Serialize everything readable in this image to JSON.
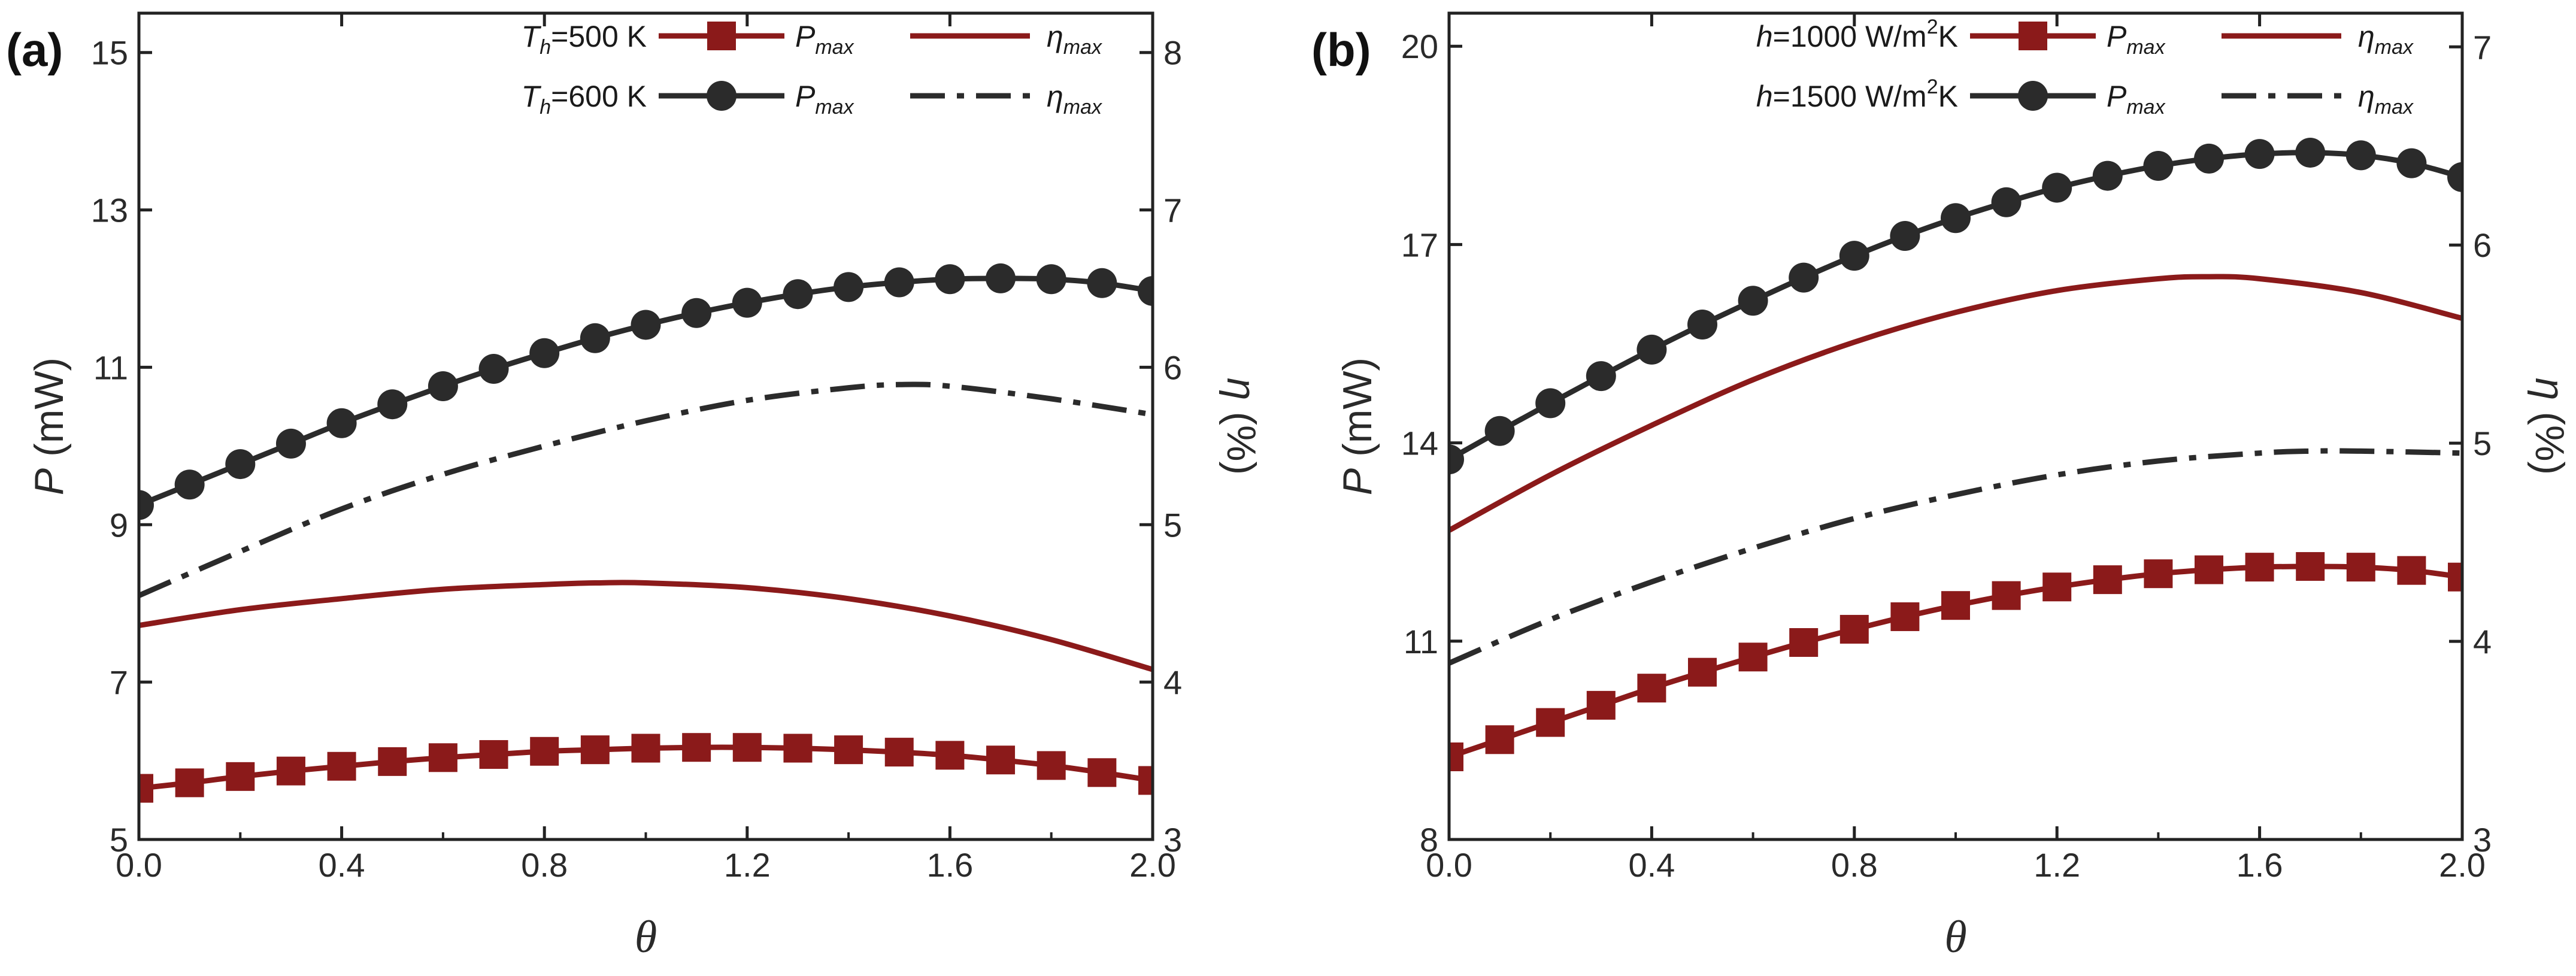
{
  "chart_data": [
    {
      "panel_label": "(a)",
      "type": "line",
      "xlabel": "θ",
      "ylabel_left_var": "P",
      "ylabel_left_unit": " (mW)",
      "ylabel_right_var": "η",
      "ylabel_right_unit": " (%)",
      "xlim": [
        0,
        2.0
      ],
      "ylim_left": [
        5,
        15.5
      ],
      "ylim_right": [
        3,
        8.25
      ],
      "xticks": [
        "0.0",
        "0.4",
        "0.8",
        "1.2",
        "1.6",
        "2.0"
      ],
      "yticks_left": [
        "5",
        "7",
        "9",
        "11",
        "13",
        "15"
      ],
      "yticks_right": [
        "3",
        "4",
        "5",
        "6",
        "7",
        "8"
      ],
      "legend": {
        "position": "top-right",
        "rows": [
          {
            "label": "T",
            "sub": "h",
            "suffix": "=500 K",
            "pmax": "P",
            "pmax_sub": "max",
            "eta": "η",
            "eta_sub": "max"
          },
          {
            "label": "T",
            "sub": "h",
            "suffix": "=600 K",
            "pmax": "P",
            "pmax_sub": "max",
            "eta": "η",
            "eta_sub": "max"
          }
        ]
      },
      "series": [
        {
          "name": "Th=500 K Pmax",
          "axis": "left",
          "style": "line-square",
          "color": "#8b1a1a",
          "x": [
            0,
            0.1,
            0.2,
            0.3,
            0.4,
            0.5,
            0.6,
            0.7,
            0.8,
            0.9,
            1.0,
            1.1,
            1.2,
            1.3,
            1.4,
            1.5,
            1.6,
            1.7,
            1.8,
            1.9,
            2.0
          ],
          "y": [
            5.65,
            5.72,
            5.8,
            5.87,
            5.93,
            5.99,
            6.04,
            6.08,
            6.12,
            6.14,
            6.16,
            6.17,
            6.17,
            6.16,
            6.14,
            6.11,
            6.07,
            6.01,
            5.94,
            5.85,
            5.75
          ]
        },
        {
          "name": "Th=600 K Pmax",
          "axis": "left",
          "style": "line-circle",
          "color": "#2b2b2b",
          "x": [
            0,
            0.1,
            0.2,
            0.3,
            0.4,
            0.5,
            0.6,
            0.7,
            0.8,
            0.9,
            1.0,
            1.1,
            1.2,
            1.3,
            1.4,
            1.5,
            1.6,
            1.7,
            1.8,
            1.9,
            2.0
          ],
          "y": [
            9.25,
            9.51,
            9.77,
            10.03,
            10.29,
            10.53,
            10.76,
            10.98,
            11.18,
            11.37,
            11.54,
            11.69,
            11.82,
            11.93,
            12.02,
            12.08,
            12.12,
            12.13,
            12.12,
            12.07,
            11.97
          ]
        },
        {
          "name": "Th=500 K eta_max",
          "axis": "right",
          "style": "solid",
          "color": "#8b1a1a",
          "x": [
            0,
            0.2,
            0.4,
            0.6,
            0.8,
            0.9,
            1.0,
            1.2,
            1.4,
            1.6,
            1.8,
            2.0
          ],
          "y": [
            4.36,
            4.46,
            4.53,
            4.59,
            4.62,
            4.63,
            4.63,
            4.6,
            4.53,
            4.42,
            4.27,
            4.08
          ]
        },
        {
          "name": "Th=600 K eta_max",
          "axis": "right",
          "style": "dashdot",
          "color": "#2b2b2b",
          "x": [
            0,
            0.2,
            0.4,
            0.6,
            0.8,
            1.0,
            1.2,
            1.4,
            1.5,
            1.6,
            1.8,
            2.0
          ],
          "y": [
            4.55,
            4.83,
            5.1,
            5.32,
            5.5,
            5.66,
            5.79,
            5.87,
            5.89,
            5.88,
            5.8,
            5.7
          ]
        }
      ]
    },
    {
      "panel_label": "(b)",
      "type": "line",
      "xlabel": "θ",
      "ylabel_left_var": "P",
      "ylabel_left_unit": " (mW)",
      "ylabel_right_var": "η",
      "ylabel_right_unit": " (%)",
      "xlim": [
        0,
        2.0
      ],
      "ylim_left": [
        8,
        20.5
      ],
      "ylim_right": [
        3,
        7.17
      ],
      "xticks": [
        "0.0",
        "0.4",
        "0.8",
        "1.2",
        "1.6",
        "2.0"
      ],
      "yticks_left": [
        "8",
        "11",
        "14",
        "17",
        "20"
      ],
      "yticks_right": [
        "3",
        "4",
        "5",
        "6",
        "7"
      ],
      "legend": {
        "position": "top-right",
        "rows": [
          {
            "label": "h",
            "unit_pre": "=1000 W/m",
            "sup": "2",
            "unit_post": "K",
            "pmax": "P",
            "pmax_sub": "max",
            "eta": "η",
            "eta_sub": "max"
          },
          {
            "label": "h",
            "unit_pre": "=1500 W/m",
            "sup": "2",
            "unit_post": "K",
            "pmax": "P",
            "pmax_sub": "max",
            "eta": "η",
            "eta_sub": "max"
          }
        ]
      },
      "series": [
        {
          "name": "h=1000 Pmax",
          "axis": "left",
          "style": "line-square",
          "color": "#8b1a1a",
          "x": [
            0,
            0.1,
            0.2,
            0.3,
            0.4,
            0.5,
            0.6,
            0.7,
            0.8,
            0.9,
            1.0,
            1.1,
            1.2,
            1.3,
            1.4,
            1.5,
            1.6,
            1.7,
            1.8,
            1.9,
            2.0
          ],
          "y": [
            9.25,
            9.51,
            9.77,
            10.03,
            10.29,
            10.53,
            10.76,
            10.98,
            11.18,
            11.37,
            11.54,
            11.69,
            11.82,
            11.93,
            12.02,
            12.08,
            12.12,
            12.13,
            12.12,
            12.07,
            11.97
          ]
        },
        {
          "name": "h=1500 Pmax",
          "axis": "left",
          "style": "line-circle",
          "color": "#2b2b2b",
          "x": [
            0,
            0.1,
            0.2,
            0.3,
            0.4,
            0.5,
            0.6,
            0.7,
            0.8,
            0.9,
            1.0,
            1.1,
            1.2,
            1.3,
            1.4,
            1.5,
            1.6,
            1.7,
            1.8,
            1.9,
            2.0
          ],
          "y": [
            13.75,
            14.18,
            14.6,
            15.01,
            15.41,
            15.79,
            16.15,
            16.5,
            16.83,
            17.13,
            17.4,
            17.64,
            17.86,
            18.04,
            18.19,
            18.3,
            18.37,
            18.39,
            18.35,
            18.23,
            18.02
          ]
        },
        {
          "name": "h=1000 eta_max",
          "axis": "right",
          "style": "solid",
          "color": "#8b1a1a",
          "x": [
            0,
            0.2,
            0.4,
            0.6,
            0.8,
            1.0,
            1.2,
            1.4,
            1.5,
            1.6,
            1.8,
            2.0
          ],
          "y": [
            4.56,
            4.84,
            5.09,
            5.32,
            5.51,
            5.66,
            5.77,
            5.83,
            5.84,
            5.83,
            5.76,
            5.63
          ]
        },
        {
          "name": "h=1500 eta_max",
          "axis": "right",
          "style": "dashdot",
          "color": "#2b2b2b",
          "x": [
            0,
            0.2,
            0.4,
            0.6,
            0.8,
            1.0,
            1.2,
            1.4,
            1.6,
            1.7,
            1.8,
            2.0
          ],
          "y": [
            3.89,
            4.11,
            4.3,
            4.47,
            4.62,
            4.74,
            4.84,
            4.91,
            4.95,
            4.96,
            4.96,
            4.95
          ]
        }
      ]
    }
  ]
}
